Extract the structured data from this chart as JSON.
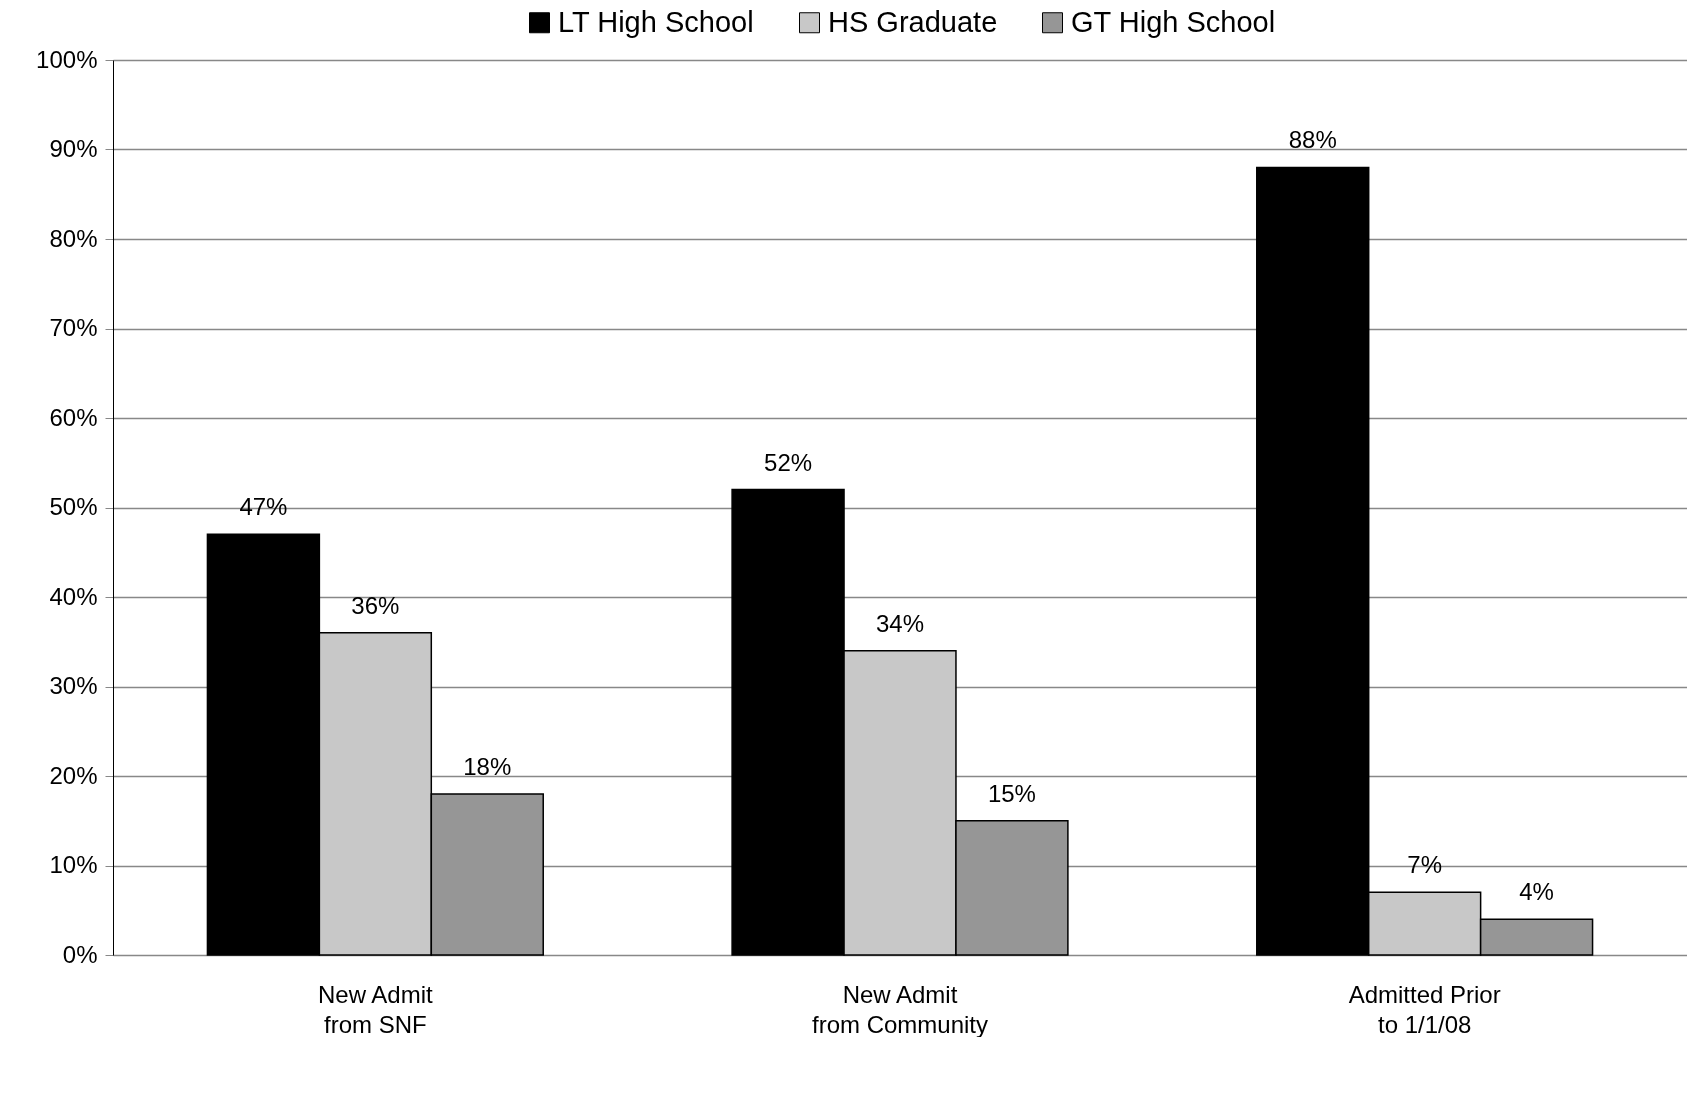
{
  "chart_data": {
    "type": "bar",
    "categories": [
      "New Admit\nfrom SNF",
      "New Admit\nfrom Community",
      "Admitted Prior\nto 1/1/08"
    ],
    "series": [
      {
        "name": "LT High School",
        "color": "#000000",
        "values": [
          47,
          52,
          88
        ],
        "value_labels": [
          "47%",
          "52%",
          "88%"
        ]
      },
      {
        "name": "HS Graduate",
        "color": "#c8c8c8",
        "values": [
          36,
          34,
          7
        ],
        "value_labels": [
          "36%",
          "34%",
          "7%"
        ]
      },
      {
        "name": "GT High School",
        "color": "#969696",
        "values": [
          18,
          15,
          4
        ],
        "value_labels": [
          "18%",
          "15%",
          "4%"
        ]
      }
    ],
    "ylim": [
      0,
      100
    ],
    "yticks": [
      {
        "value": 0,
        "label": "0%"
      },
      {
        "value": 10,
        "label": "10%"
      },
      {
        "value": 20,
        "label": "20%"
      },
      {
        "value": 30,
        "label": "30%"
      },
      {
        "value": 40,
        "label": "40%"
      },
      {
        "value": 50,
        "label": "50%"
      },
      {
        "value": 60,
        "label": "60%"
      },
      {
        "value": 70,
        "label": "70%"
      },
      {
        "value": 80,
        "label": "80%"
      },
      {
        "value": 90,
        "label": "90%"
      },
      {
        "value": 100,
        "label": "100%"
      }
    ],
    "grid": "y",
    "legend": "top"
  }
}
